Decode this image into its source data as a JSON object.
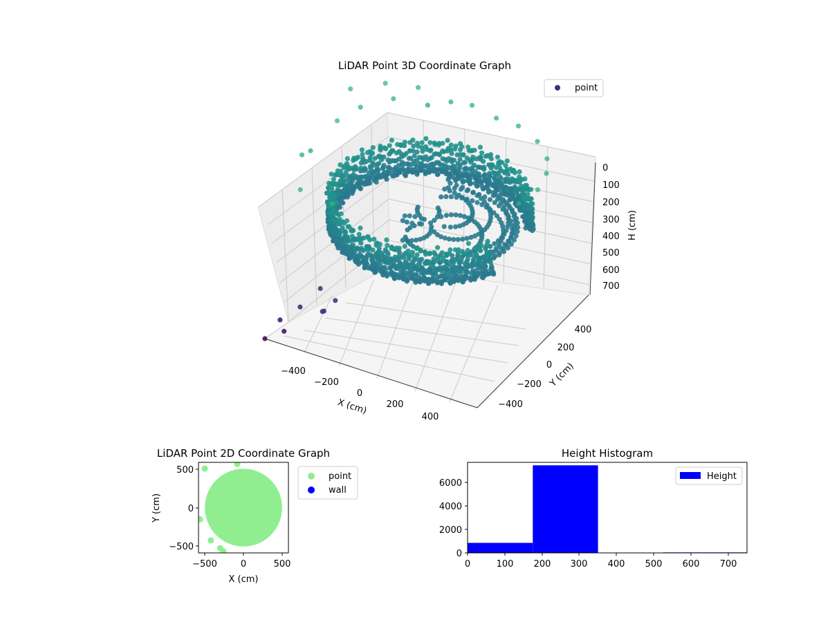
{
  "chart_data": [
    {
      "type": "scatter",
      "projection": "3d",
      "title": "LiDAR Point 3D Coordinate Graph",
      "xlabel": "X (cm)",
      "ylabel": "Y (cm)",
      "zlabel": "H (cm)",
      "xlim": [
        -550,
        500
      ],
      "ylim": [
        -550,
        500
      ],
      "zlim": [
        0,
        750
      ],
      "z_inverted": true,
      "xticks": [
        "−400",
        "−200",
        "0",
        "200",
        "400"
      ],
      "yticks": [
        "−400",
        "−200",
        "0",
        "200",
        "400"
      ],
      "zticks": [
        "0",
        "100",
        "200",
        "300",
        "400",
        "500",
        "600",
        "700"
      ],
      "grid": true,
      "colormap": "viridis by height",
      "legend": {
        "entries": [
          "point"
        ],
        "placement": "top-right"
      },
      "series": [
        {
          "name": "point",
          "color": "#472c7a",
          "description_values": {
            "ring_radius_cm": 450,
            "ring_height_range_cm": [
              200,
              350
            ]
          },
          "points": [
            [
              -540,
              300,
              30
            ],
            [
              -430,
              420,
              30
            ],
            [
              -300,
              480,
              40
            ],
            [
              -480,
              60,
              40
            ],
            [
              -520,
              -200,
              80
            ],
            [
              -380,
              -480,
              60
            ],
            [
              -200,
              -520,
              50
            ],
            [
              -460,
              240,
              60
            ],
            [
              -250,
              470,
              100
            ],
            [
              -520,
              -120,
              100
            ],
            [
              -150,
              500,
              70
            ],
            [
              -50,
              510,
              60
            ],
            [
              80,
              490,
              70
            ],
            [
              200,
              470,
              60
            ],
            [
              320,
              420,
              70
            ],
            [
              420,
              320,
              70
            ],
            [
              480,
              200,
              60
            ],
            [
              500,
              80,
              70
            ],
            [
              480,
              -60,
              70
            ],
            [
              -360,
              360,
              50
            ],
            [
              -400,
              -300,
              600
            ],
            [
              -450,
              -400,
              650
            ],
            [
              -520,
              -460,
              700
            ],
            [
              -480,
              -500,
              720
            ],
            [
              -300,
              -350,
              600
            ],
            [
              -350,
              -380,
              650
            ],
            [
              -550,
              -550,
              750
            ],
            [
              -320,
              -420,
              620
            ]
          ]
        }
      ]
    },
    {
      "type": "scatter",
      "title": "LiDAR Point 2D Coordinate Graph",
      "xlabel": "X (cm)",
      "ylabel": "Y (cm)",
      "xlim": [
        -580,
        580
      ],
      "ylim": [
        -580,
        580
      ],
      "xticks": [
        "−500",
        "0",
        "500"
      ],
      "yticks": [
        "500",
        "0",
        "−500"
      ],
      "legend": {
        "entries": [
          "point",
          "wall"
        ],
        "placement": "outside-right"
      },
      "series": [
        {
          "name": "point",
          "color": "#90ee90",
          "description_values": {
            "disk_radius_cm": 460,
            "center": [
              0,
              0
            ]
          }
        },
        {
          "name": "wall",
          "color": "#0000ff",
          "points": []
        }
      ]
    },
    {
      "type": "bar",
      "subtype": "histogram",
      "title": "Height Histogram",
      "xlim": [
        0,
        750
      ],
      "ylim": [
        0,
        7700
      ],
      "xticks": [
        "0",
        "100",
        "200",
        "300",
        "400",
        "500",
        "600",
        "700"
      ],
      "yticks": [
        "0",
        "2000",
        "4000",
        "6000"
      ],
      "legend": {
        "entries": [
          "Height"
        ],
        "placement": "top-right"
      },
      "series": [
        {
          "name": "Height",
          "color": "#0000ff",
          "bins": [
            0,
            175,
            350,
            525,
            750
          ],
          "values": [
            850,
            7450,
            0,
            40
          ]
        }
      ]
    }
  ]
}
